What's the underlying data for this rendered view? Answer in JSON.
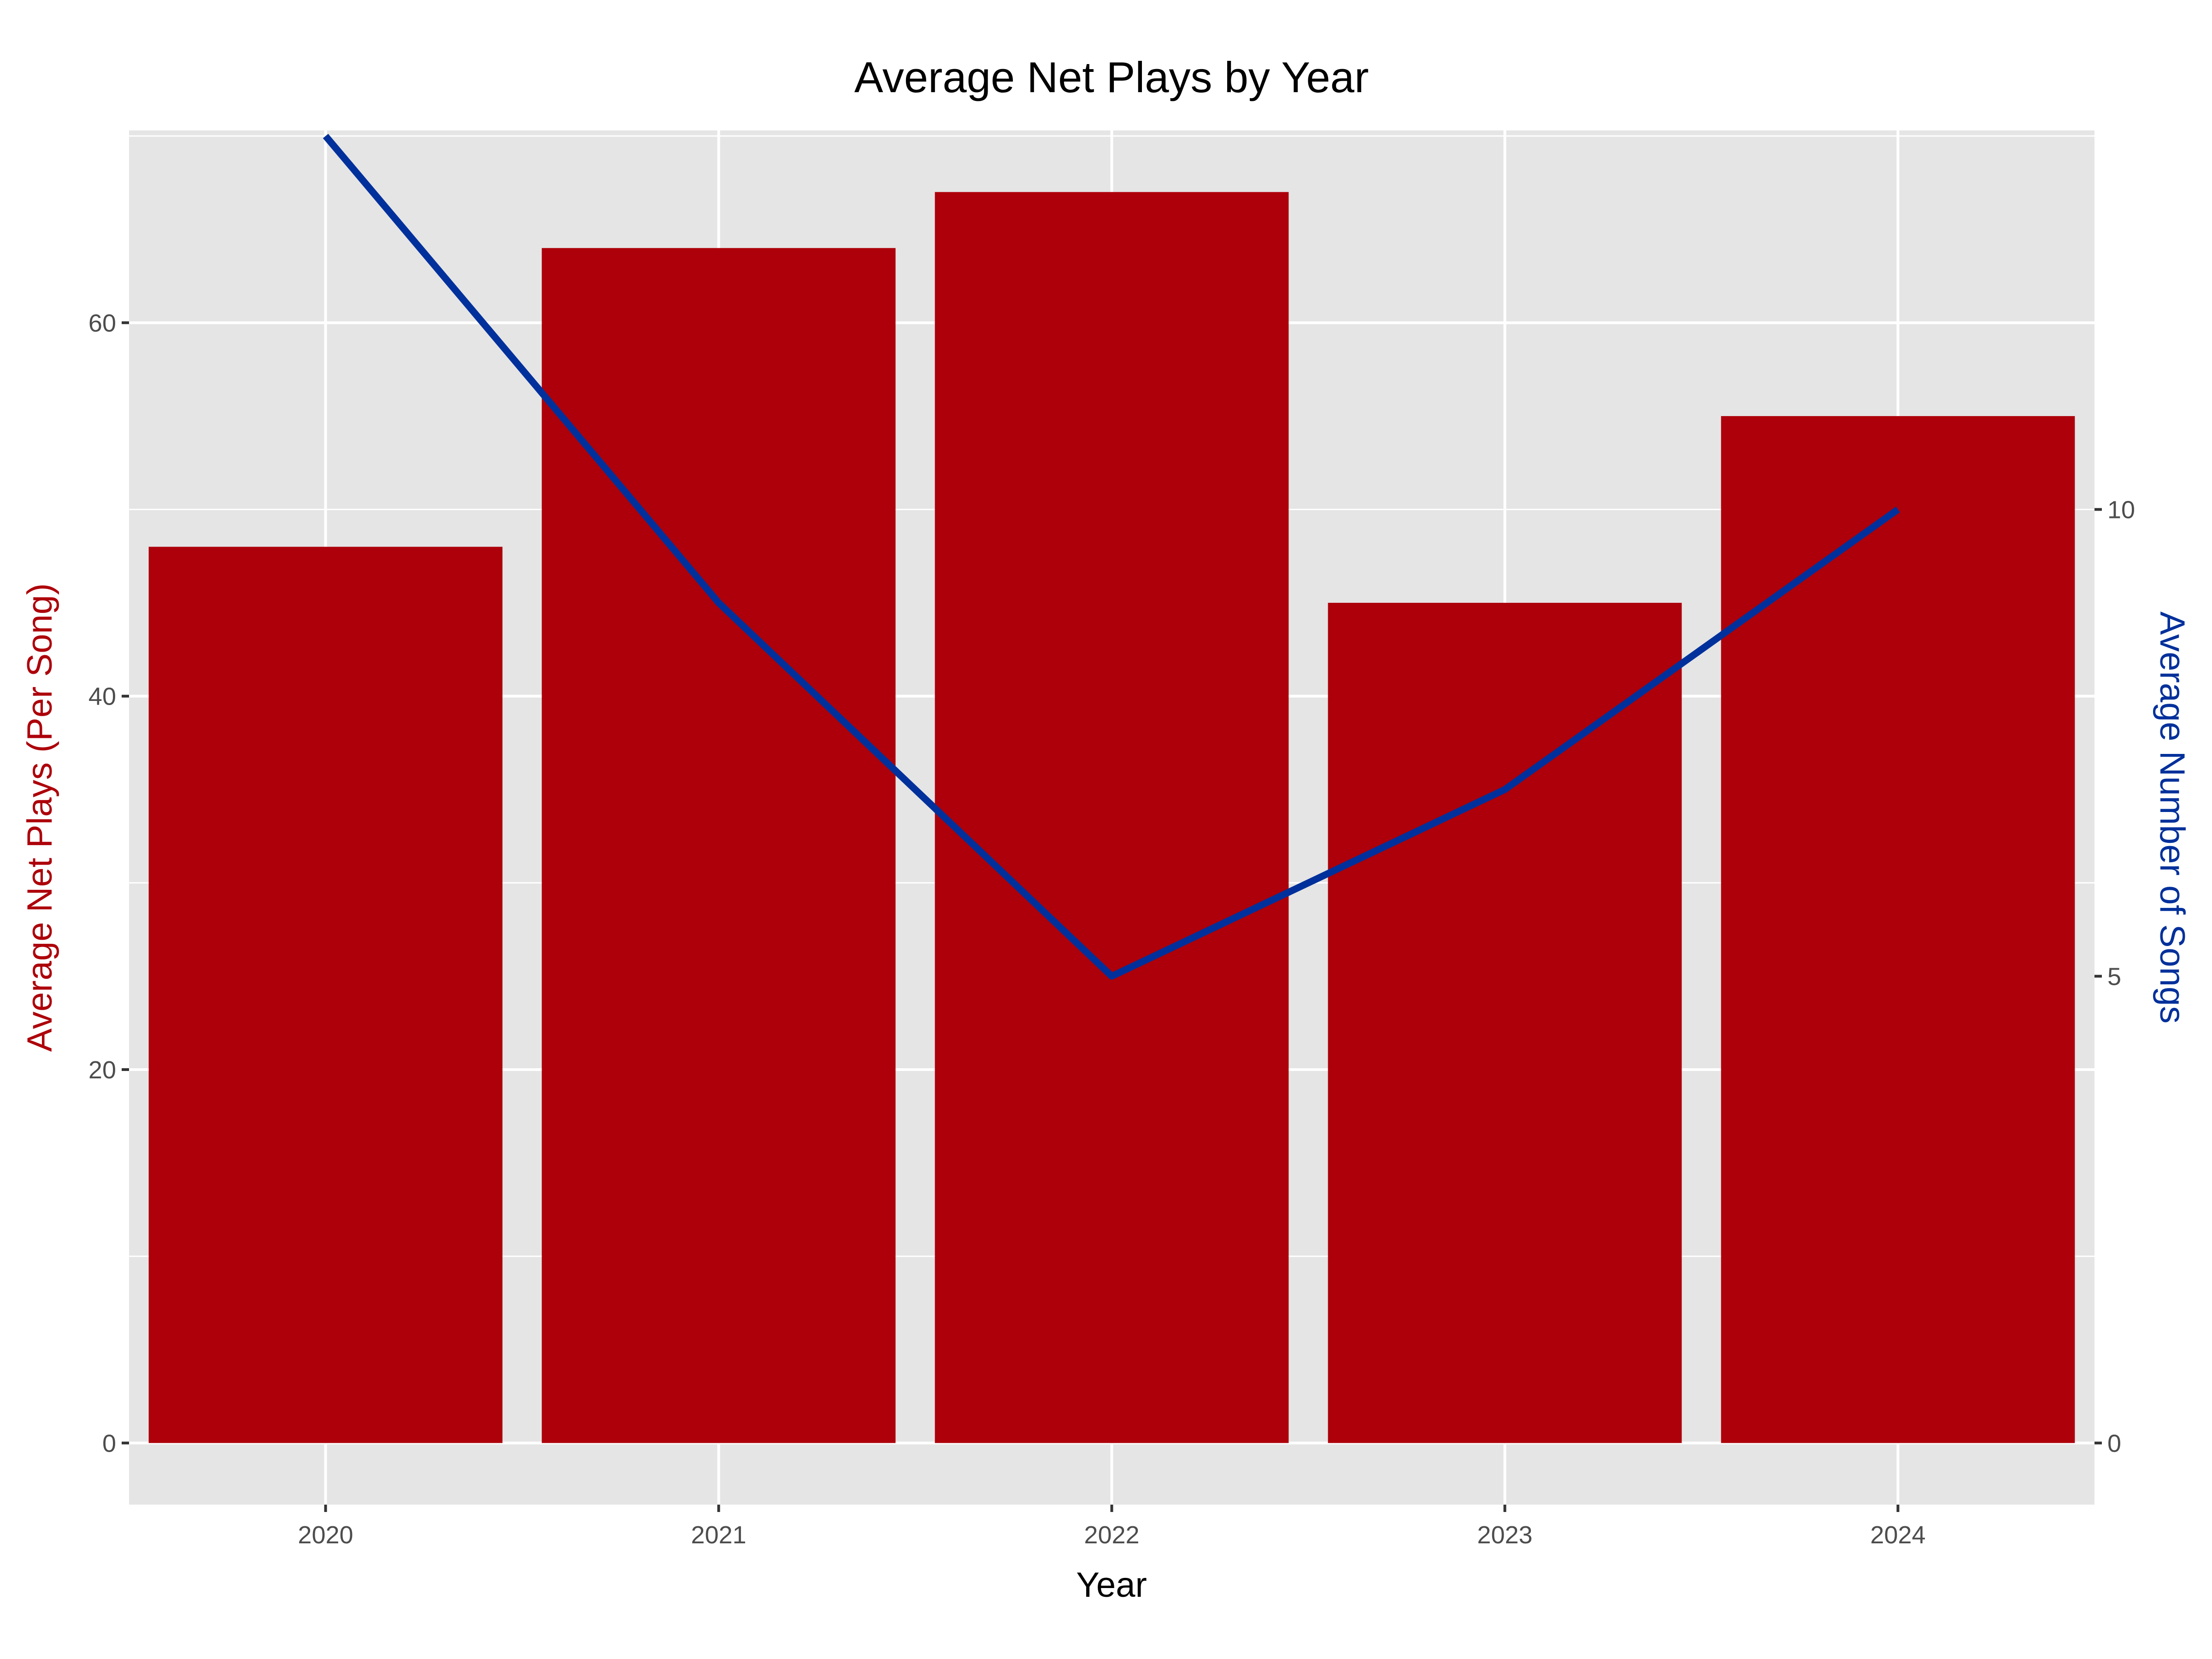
{
  "chart_data": {
    "type": "bar",
    "title": "Average Net Plays by Year",
    "xlabel": "Year",
    "ylabel": "Average Net Plays (Per Song)",
    "y2label": "Average Number of Songs",
    "categories": [
      "2020",
      "2021",
      "2022",
      "2023",
      "2024"
    ],
    "series": [
      {
        "name": "Average Net Plays (Per Song)",
        "type": "bar",
        "axis": "left",
        "values": [
          48,
          64,
          67,
          45,
          55
        ],
        "color": "#ad000a"
      },
      {
        "name": "Average Number of Songs",
        "type": "line",
        "axis": "right",
        "values": [
          14,
          9,
          5,
          7,
          10
        ],
        "color": "#00309b"
      }
    ],
    "ylim": [
      -3.3,
      70.3
    ],
    "y_ticks": [
      0,
      20,
      40,
      60
    ],
    "y2lim": [
      -0.66,
      14.06
    ],
    "y2_ticks": [
      0,
      5,
      10
    ],
    "grid": true,
    "panel_background": "#e5e5e5",
    "grid_color": "#ffffff",
    "left_axis_title_color": "#ad000a",
    "right_axis_title_color": "#00309b"
  }
}
